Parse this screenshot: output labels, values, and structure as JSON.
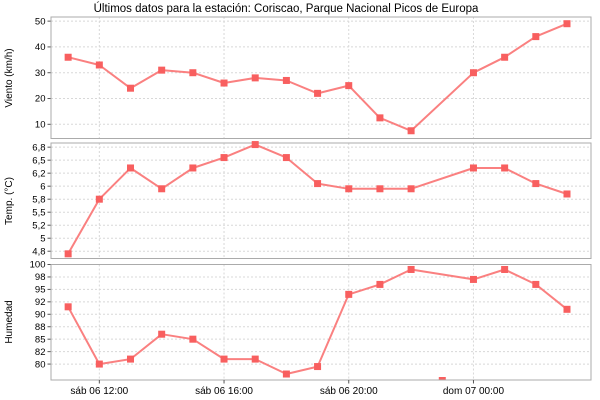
{
  "title": "Últimos datos para la estación: Coriscao, Parque Nacional Picos de Europa",
  "chart_data": {
    "type": "line",
    "title": "Últimos datos para la estación: Coriscao, Parque Nacional Picos de Europa",
    "grid": true,
    "legend_position": "none",
    "colors": {
      "marker": "#f85f5f",
      "line": "#fa8080"
    },
    "x_axis": {
      "unit": "hours (24 = dom 07 00:00)",
      "xlim": [
        10.45,
        27.77
      ],
      "ticks": [
        {
          "h": 12,
          "label": "sáb 06 12:00"
        },
        {
          "h": 16,
          "label": "sáb 06 16:00"
        },
        {
          "h": 20,
          "label": "sáb 06 20:00"
        },
        {
          "h": 24,
          "label": "dom 07 00:00"
        }
      ]
    },
    "missing_hour": 23,
    "charts": [
      {
        "ylabel": "Viento (km/h)",
        "ylim": [
          4.5,
          51.6
        ],
        "yticks": [
          {
            "v": 10,
            "label": "10"
          },
          {
            "v": 20,
            "label": "20"
          },
          {
            "v": 30,
            "label": "30"
          },
          {
            "v": 40,
            "label": "40"
          },
          {
            "v": 50,
            "label": "50"
          }
        ],
        "points": [
          {
            "h": 11,
            "v": 36
          },
          {
            "h": 12,
            "v": 33
          },
          {
            "h": 13,
            "v": 24
          },
          {
            "h": 14,
            "v": 31
          },
          {
            "h": 15,
            "v": 30
          },
          {
            "h": 16,
            "v": 26
          },
          {
            "h": 17,
            "v": 28
          },
          {
            "h": 18,
            "v": 27
          },
          {
            "h": 19,
            "v": 22
          },
          {
            "h": 20,
            "v": 25
          },
          {
            "h": 21,
            "v": 12.5
          },
          {
            "h": 22,
            "v": 7.5
          },
          {
            "h": 24,
            "v": 30
          },
          {
            "h": 25,
            "v": 36
          },
          {
            "h": 26,
            "v": 44
          },
          {
            "h": 27,
            "v": 49
          }
        ]
      },
      {
        "ylabel": "Temp. (°C)",
        "ylim": [
          4.61,
          6.83
        ],
        "yticks": [
          {
            "v": 4.75,
            "label": "4,8"
          },
          {
            "v": 5.0,
            "label": "5"
          },
          {
            "v": 5.25,
            "label": "5,2"
          },
          {
            "v": 5.5,
            "label": "5,5"
          },
          {
            "v": 5.75,
            "label": "5,8"
          },
          {
            "v": 6.0,
            "label": "6"
          },
          {
            "v": 6.25,
            "label": "6,2"
          },
          {
            "v": 6.5,
            "label": "6,5"
          },
          {
            "v": 6.75,
            "label": "6,8"
          }
        ],
        "points": [
          {
            "h": 11,
            "v": 4.7
          },
          {
            "h": 12,
            "v": 5.75
          },
          {
            "h": 13,
            "v": 6.35
          },
          {
            "h": 14,
            "v": 5.95
          },
          {
            "h": 15,
            "v": 6.35
          },
          {
            "h": 16,
            "v": 6.55
          },
          {
            "h": 17,
            "v": 6.8
          },
          {
            "h": 18,
            "v": 6.55
          },
          {
            "h": 19,
            "v": 6.05
          },
          {
            "h": 20,
            "v": 5.95
          },
          {
            "h": 21,
            "v": 5.95
          },
          {
            "h": 22,
            "v": 5.95
          },
          {
            "h": 24,
            "v": 6.35
          },
          {
            "h": 25,
            "v": 6.35
          },
          {
            "h": 26,
            "v": 6.05
          },
          {
            "h": 27,
            "v": 5.85
          }
        ]
      },
      {
        "ylabel": "Humedad",
        "ylim": [
          76.8,
          100
        ],
        "yticks": [
          {
            "v": 80,
            "label": "80"
          },
          {
            "v": 82.5,
            "label": "82"
          },
          {
            "v": 85,
            "label": "85"
          },
          {
            "v": 87.5,
            "label": "88"
          },
          {
            "v": 90,
            "label": "90"
          },
          {
            "v": 92.5,
            "label": "92"
          },
          {
            "v": 95,
            "label": "95"
          },
          {
            "v": 97.5,
            "label": "98"
          },
          {
            "v": 100,
            "label": "100"
          }
        ],
        "points": [
          {
            "h": 11,
            "v": 91.5
          },
          {
            "h": 12,
            "v": 80
          },
          {
            "h": 13,
            "v": 81
          },
          {
            "h": 14,
            "v": 86
          },
          {
            "h": 15,
            "v": 85
          },
          {
            "h": 16,
            "v": 81
          },
          {
            "h": 17,
            "v": 81
          },
          {
            "h": 18,
            "v": 78
          },
          {
            "h": 19,
            "v": 79.5
          },
          {
            "h": 20,
            "v": 94
          },
          {
            "h": 21,
            "v": 96
          },
          {
            "h": 22,
            "v": 99
          },
          {
            "h": 24,
            "v": 97
          },
          {
            "h": 25,
            "v": 99
          },
          {
            "h": 26,
            "v": 96
          },
          {
            "h": 27,
            "v": 91
          }
        ],
        "clipped_marker_hour": 23
      }
    ]
  }
}
